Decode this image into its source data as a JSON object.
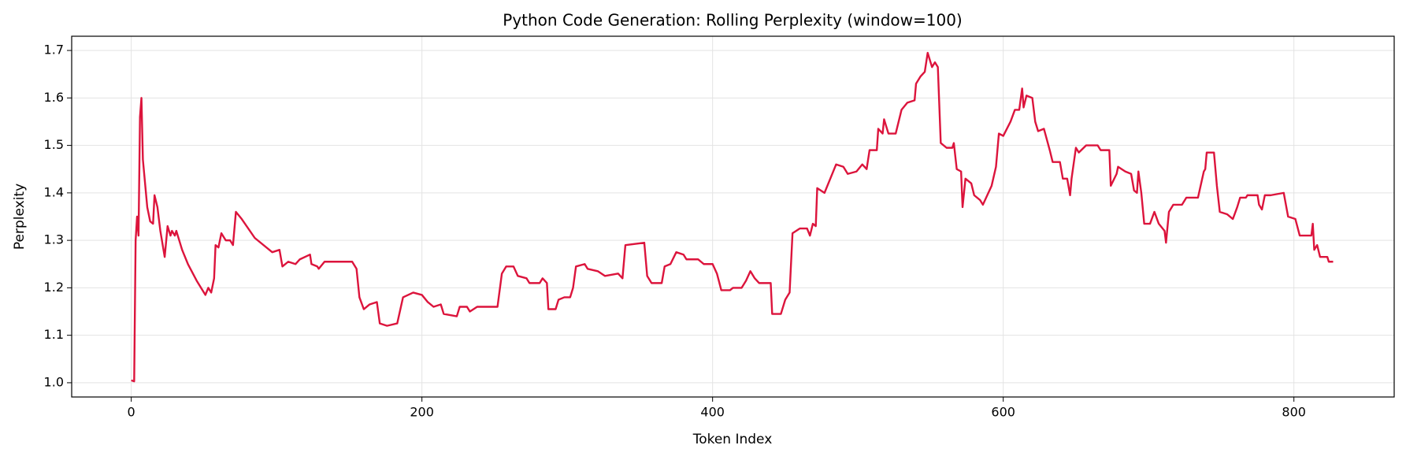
{
  "chart_data": {
    "type": "line",
    "title": "Python Code Generation: Rolling Perplexity (window=100)",
    "x_label": "Token Index",
    "y_label": "Perplexity",
    "color": "#dc143c",
    "grid": true,
    "xlim": [
      -41,
      869
    ],
    "ylim": [
      0.97,
      1.73
    ],
    "xticks": [
      0,
      200,
      400,
      600,
      800
    ],
    "yticks": [
      {
        "value": 1,
        "label": "1.0"
      },
      1.1,
      1.2,
      1.3,
      1.4,
      1.5,
      1.6,
      1.7
    ],
    "x": [
      0,
      2,
      3,
      4,
      5,
      6,
      7,
      8,
      11,
      13,
      15,
      16,
      18,
      20,
      23,
      25,
      27,
      28,
      30,
      31,
      35,
      39,
      45,
      51,
      53,
      55,
      57,
      58,
      60,
      62,
      65,
      68,
      70,
      72,
      76,
      85,
      97,
      102,
      104,
      108,
      113,
      116,
      123,
      124,
      128,
      129,
      133,
      152,
      155,
      157,
      160,
      164,
      169,
      171,
      176,
      183,
      187,
      194,
      200,
      204,
      208,
      213,
      215,
      224,
      226,
      231,
      233,
      238,
      252,
      255,
      258,
      263,
      266,
      272,
      274,
      281,
      283,
      286,
      287,
      292,
      294,
      298,
      302,
      304,
      306,
      312,
      314,
      321,
      326,
      335,
      338,
      340,
      353,
      355,
      358,
      365,
      367,
      371,
      375,
      380,
      382,
      390,
      394,
      400,
      403,
      406,
      412,
      414,
      420,
      423,
      426,
      429,
      432,
      440,
      441,
      447,
      450,
      453,
      455,
      460,
      465,
      467,
      469,
      471,
      472,
      477,
      481,
      485,
      490,
      493,
      499,
      503,
      506,
      508,
      513,
      514,
      517,
      518,
      521,
      526,
      530,
      534,
      539,
      540,
      543,
      546,
      548,
      551,
      553,
      555,
      557,
      561,
      565,
      566,
      568,
      571,
      572,
      574,
      578,
      580,
      584,
      586,
      589,
      592,
      595,
      597,
      600,
      605,
      608,
      611,
      613,
      614,
      616,
      620,
      622,
      624,
      628,
      632,
      634,
      639,
      641,
      644,
      646,
      647,
      650,
      652,
      657,
      665,
      667,
      673,
      674,
      678,
      679,
      684,
      688,
      690,
      692,
      693,
      695,
      697,
      701,
      704,
      707,
      711,
      712,
      714,
      717,
      723,
      726,
      734,
      738,
      739,
      740,
      745,
      747,
      749,
      754,
      758,
      761,
      763,
      767,
      768,
      775,
      776,
      778,
      780,
      784,
      793,
      796,
      801,
      804,
      812,
      813,
      814,
      816,
      818,
      823,
      824,
      827
    ],
    "values": [
      1.005,
      1.003,
      1.3,
      1.35,
      1.31,
      1.56,
      1.6,
      1.47,
      1.37,
      1.34,
      1.335,
      1.395,
      1.37,
      1.32,
      1.265,
      1.33,
      1.31,
      1.32,
      1.31,
      1.32,
      1.28,
      1.25,
      1.215,
      1.185,
      1.2,
      1.19,
      1.22,
      1.29,
      1.285,
      1.315,
      1.3,
      1.3,
      1.29,
      1.36,
      1.345,
      1.305,
      1.275,
      1.28,
      1.245,
      1.255,
      1.25,
      1.26,
      1.27,
      1.25,
      1.245,
      1.24,
      1.255,
      1.255,
      1.24,
      1.18,
      1.155,
      1.165,
      1.17,
      1.125,
      1.12,
      1.125,
      1.18,
      1.19,
      1.185,
      1.17,
      1.16,
      1.165,
      1.145,
      1.14,
      1.16,
      1.16,
      1.15,
      1.16,
      1.16,
      1.23,
      1.245,
      1.245,
      1.225,
      1.22,
      1.21,
      1.21,
      1.22,
      1.21,
      1.155,
      1.155,
      1.175,
      1.18,
      1.18,
      1.2,
      1.245,
      1.25,
      1.24,
      1.235,
      1.225,
      1.23,
      1.22,
      1.29,
      1.295,
      1.225,
      1.21,
      1.21,
      1.245,
      1.25,
      1.275,
      1.27,
      1.26,
      1.26,
      1.25,
      1.25,
      1.23,
      1.195,
      1.195,
      1.2,
      1.2,
      1.215,
      1.235,
      1.22,
      1.21,
      1.21,
      1.145,
      1.145,
      1.175,
      1.19,
      1.315,
      1.325,
      1.325,
      1.31,
      1.335,
      1.33,
      1.41,
      1.4,
      1.43,
      1.46,
      1.455,
      1.44,
      1.445,
      1.46,
      1.45,
      1.49,
      1.49,
      1.535,
      1.525,
      1.555,
      1.525,
      1.525,
      1.575,
      1.59,
      1.595,
      1.63,
      1.645,
      1.655,
      1.695,
      1.665,
      1.675,
      1.665,
      1.505,
      1.495,
      1.495,
      1.505,
      1.45,
      1.445,
      1.37,
      1.43,
      1.42,
      1.395,
      1.385,
      1.375,
      1.395,
      1.415,
      1.455,
      1.525,
      1.52,
      1.55,
      1.575,
      1.575,
      1.62,
      1.58,
      1.605,
      1.6,
      1.55,
      1.53,
      1.535,
      1.49,
      1.465,
      1.465,
      1.43,
      1.43,
      1.395,
      1.43,
      1.495,
      1.485,
      1.5,
      1.5,
      1.49,
      1.49,
      1.415,
      1.44,
      1.455,
      1.445,
      1.44,
      1.405,
      1.4,
      1.445,
      1.4,
      1.335,
      1.335,
      1.36,
      1.335,
      1.32,
      1.295,
      1.36,
      1.375,
      1.375,
      1.39,
      1.39,
      1.445,
      1.45,
      1.485,
      1.485,
      1.415,
      1.36,
      1.355,
      1.345,
      1.37,
      1.39,
      1.39,
      1.395,
      1.395,
      1.375,
      1.365,
      1.395,
      1.395,
      1.4,
      1.35,
      1.345,
      1.31,
      1.31,
      1.335,
      1.28,
      1.29,
      1.265,
      1.265,
      1.255,
      1.255
    ]
  }
}
